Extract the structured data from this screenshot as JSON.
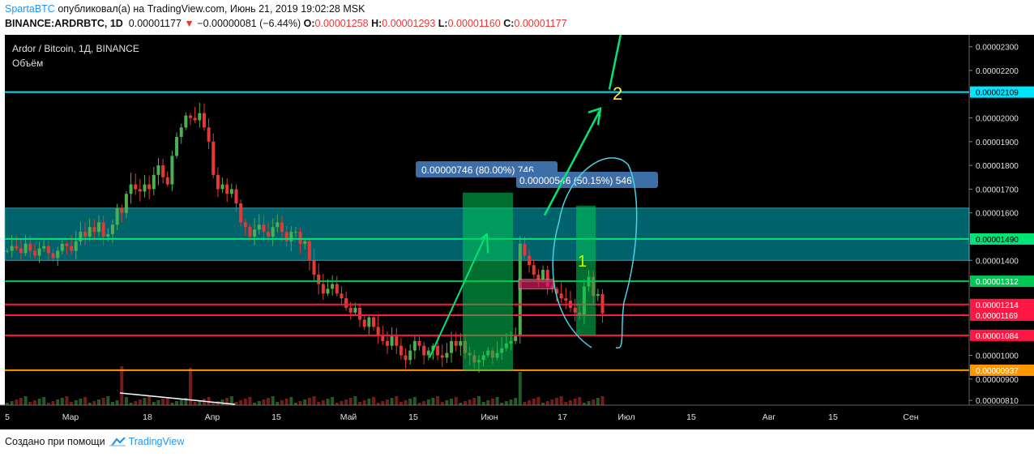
{
  "header": {
    "author": "SpartaBTC",
    "published_text": "опубликовал(а) на TradingView.com, Июнь 21, 2019 19:02:28 MSK",
    "symbol": "BINANCE:ARDRBTC, 1D",
    "last": "0.00001177",
    "change": "−0.00000081 (−6.44%)",
    "o_label": "O:",
    "o": "0.00001258",
    "h_label": "H:",
    "h": "0.00001293",
    "l_label": "L:",
    "l": "0.00001160",
    "c_label": "C:",
    "c": "0.00001177"
  },
  "footer": {
    "created_with": "Создано при помощи",
    "brand": "TradingView"
  },
  "chart_data": {
    "type": "candlestick",
    "title": "Ardor / Bitcoin, 1Д, BINANCE",
    "subtitle": "Объём",
    "y_range": [
      7.9e-06,
      2.35e-05
    ],
    "y_ticks": [
      "0.00002300",
      "0.00002200",
      "0.00002000",
      "0.00001900",
      "0.00001800",
      "0.00001700",
      "0.00001600",
      "0.00001400",
      "0.00001000",
      "0.00000900",
      "0.00000810"
    ],
    "x_labels": [
      "5",
      "Мар",
      "18",
      "Апр",
      "15",
      "Май",
      "15",
      "Июн",
      "17",
      "Июл",
      "15",
      "Авг",
      "15",
      "Сен"
    ],
    "price_tags": [
      {
        "value": 2.109e-05,
        "text": "0.00002109",
        "color": "#00e5ff"
      },
      {
        "value": 1.49e-05,
        "text": "0.00001490",
        "color": "#00e676"
      },
      {
        "value": 1.312e-05,
        "text": "0.00001312",
        "color": "#00c853"
      },
      {
        "value": 1.214e-05,
        "text": "0.00001214",
        "color": "#ff1744"
      },
      {
        "value": 1.169e-05,
        "text": "0.00001169",
        "color": "#ff1744"
      },
      {
        "value": 1.084e-05,
        "text": "0.00001084",
        "color": "#ff1744"
      },
      {
        "value": 9.37e-06,
        "text": "0.00000937",
        "color": "#ff9800"
      }
    ],
    "zone": {
      "from": 1.4e-05,
      "to": 1.62e-05
    },
    "annotations": [
      {
        "text": "0.00000746 (80.00%) 746"
      },
      {
        "text": "0.00000546 (50.15%) 546"
      },
      {
        "text": "1",
        "color": "#c6ff00"
      },
      {
        "text": "2",
        "color": "#ffeb3b"
      }
    ]
  }
}
